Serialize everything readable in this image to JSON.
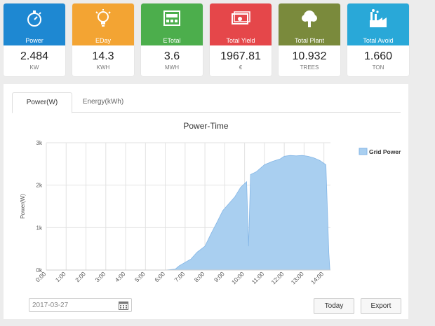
{
  "cards": [
    {
      "label": "Power",
      "value": "2.484",
      "unit": "KW",
      "color": "#1e88d2",
      "icon": "stopwatch-icon"
    },
    {
      "label": "EDay",
      "value": "14.3",
      "unit": "KWH",
      "color": "#f3a433",
      "icon": "lightbulb-icon"
    },
    {
      "label": "ETotal",
      "value": "3.6",
      "unit": "MWH",
      "color": "#4cae4c",
      "icon": "meter-icon"
    },
    {
      "label": "Total Yield",
      "value": "1967.81",
      "unit": "€",
      "color": "#e5474a",
      "icon": "money-icon"
    },
    {
      "label": "Total Plant",
      "value": "10.932",
      "unit": "TREES",
      "color": "#7a8a3c",
      "icon": "tree-icon"
    },
    {
      "label": "Total Avoid",
      "value": "1.660",
      "unit": "TON",
      "color": "#29a8d8",
      "icon": "factory-icon"
    }
  ],
  "tabs": {
    "power": "Power(W)",
    "energy": "Energy(kWh)"
  },
  "controls": {
    "date": "2017-03-27",
    "today": "Today",
    "export": "Export"
  },
  "chart_data": {
    "type": "area",
    "title": "Power-Time",
    "ylabel": "Power(W)",
    "ylim": [
      0,
      3000
    ],
    "yticks": [
      "0k",
      "1k",
      "2k",
      "3k"
    ],
    "xticks": [
      "0:00",
      "1:00",
      "2:00",
      "3:00",
      "4:00",
      "5:00",
      "6:00",
      "7:00",
      "8:00",
      "9:00",
      "10:00",
      "11:00",
      "12:00",
      "13:00",
      "14:00"
    ],
    "xlim": [
      0,
      14.33
    ],
    "series": [
      {
        "name": "Grid Power",
        "color": "#a9cff0",
        "stroke": "#84b6e6",
        "points": [
          [
            0,
            0
          ],
          [
            6,
            0
          ],
          [
            6.5,
            20
          ],
          [
            6.7,
            100
          ],
          [
            7,
            180
          ],
          [
            7.3,
            260
          ],
          [
            7.6,
            420
          ],
          [
            8,
            560
          ],
          [
            8.3,
            850
          ],
          [
            8.6,
            1120
          ],
          [
            8.9,
            1400
          ],
          [
            9.2,
            1560
          ],
          [
            9.5,
            1720
          ],
          [
            9.8,
            1950
          ],
          [
            10.1,
            2080
          ],
          [
            10.2,
            560
          ],
          [
            10.3,
            2250
          ],
          [
            10.6,
            2320
          ],
          [
            11,
            2480
          ],
          [
            11.4,
            2560
          ],
          [
            11.8,
            2620
          ],
          [
            12,
            2680
          ],
          [
            12.3,
            2700
          ],
          [
            12.6,
            2690
          ],
          [
            12.9,
            2700
          ],
          [
            13.2,
            2680
          ],
          [
            13.5,
            2640
          ],
          [
            13.8,
            2580
          ],
          [
            14.1,
            2480
          ],
          [
            14.25,
            400
          ],
          [
            14.3,
            0
          ]
        ]
      }
    ]
  }
}
